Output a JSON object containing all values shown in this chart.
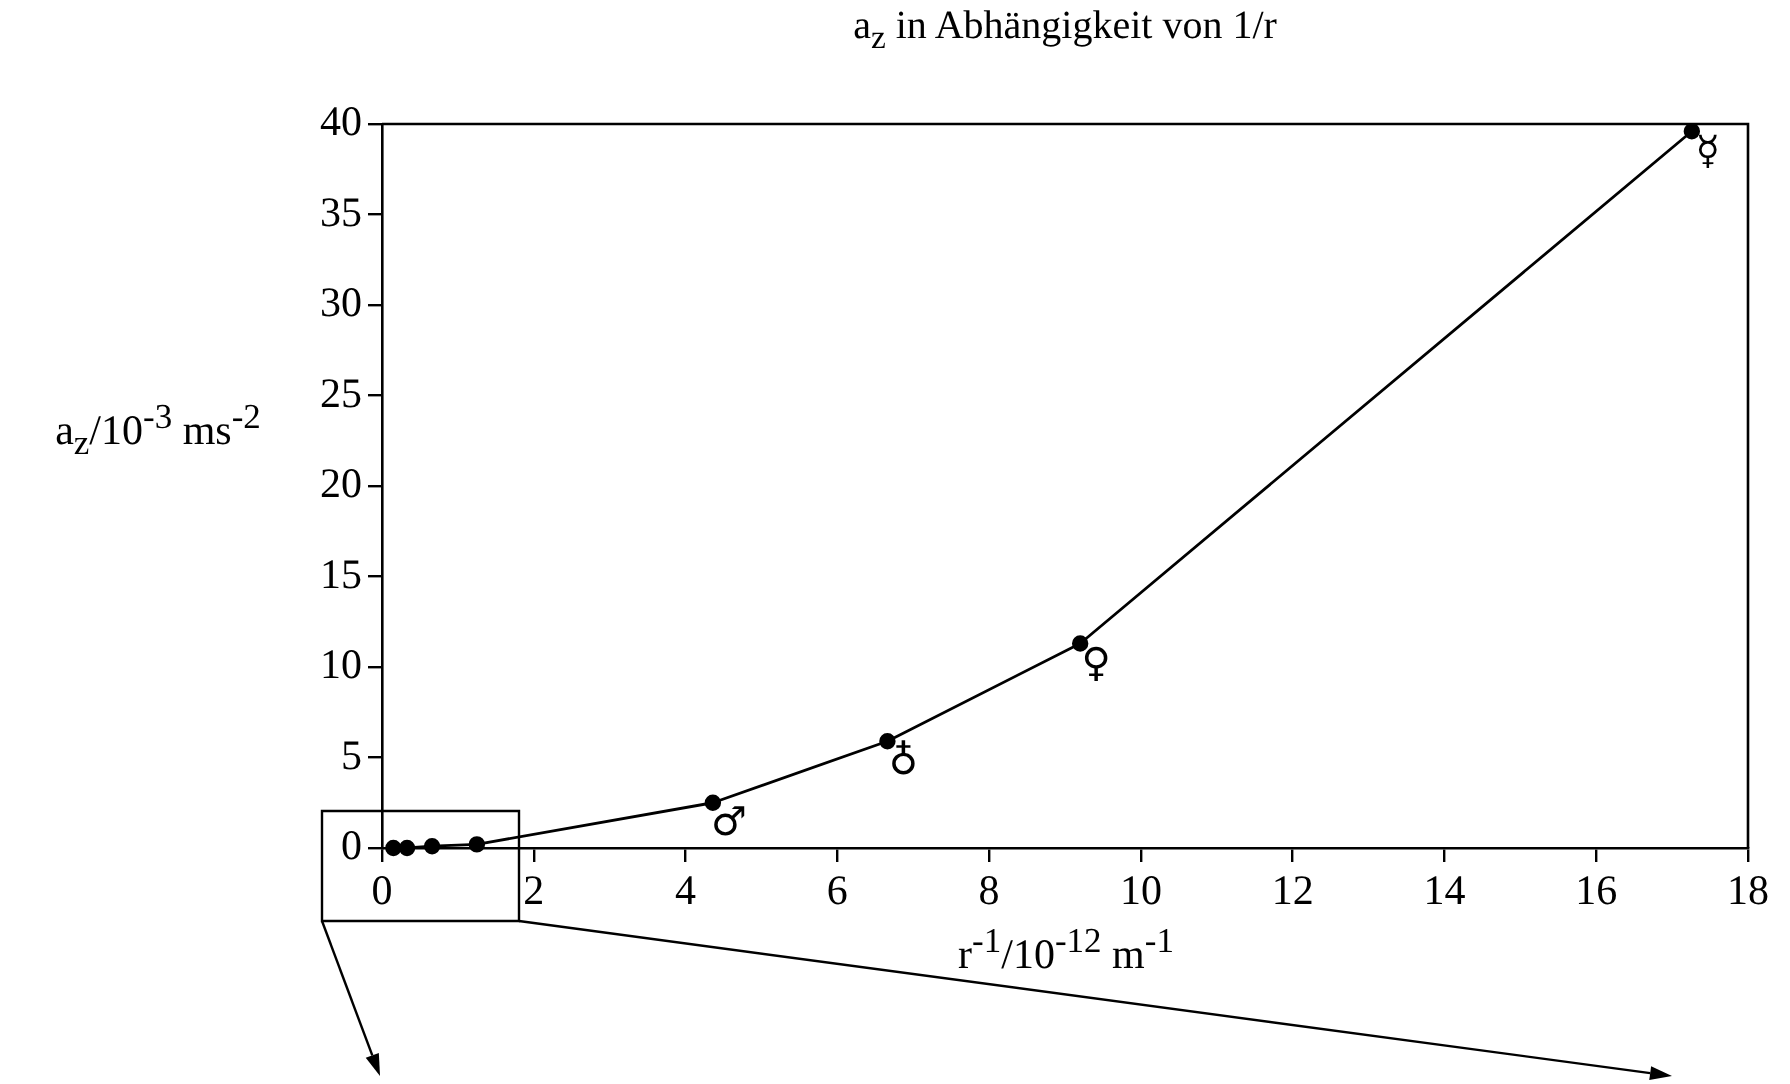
{
  "chart_data": {
    "type": "line",
    "title": "a$_{z}$ in Abhängigkeit von 1/r",
    "xlabel": "r$^{-1}$/10$^{-12}$ m$^{-1}$",
    "ylabel": "a$_{z}$/10$^{-3}$ ms$^{-2}$",
    "x": [
      0.15,
      0.33,
      0.66,
      1.25,
      4.36,
      6.66,
      9.2,
      17.26
    ],
    "values": [
      0,
      0,
      0.1,
      0.2,
      2.5,
      5.9,
      11.3,
      39.6
    ],
    "color": "#000000",
    "marker": "circle",
    "line_style": "solid",
    "xlim": [
      0,
      18
    ],
    "xticks": [
      0,
      2,
      4,
      6,
      8,
      10,
      12,
      14,
      16,
      18
    ],
    "ylim": [
      0,
      40
    ],
    "yticks": [
      0,
      5,
      10,
      15,
      20,
      25,
      30,
      35,
      40
    ],
    "annotations": [
      {
        "text": "♂",
        "x": 4.36,
        "y": 2.5
      },
      {
        "text": "♁",
        "x": 6.66,
        "y": 5.9
      },
      {
        "text": "♀",
        "x": 9.2,
        "y": 11.3
      },
      {
        "text": "☿",
        "x": 17.26,
        "y": 39.6
      }
    ]
  }
}
